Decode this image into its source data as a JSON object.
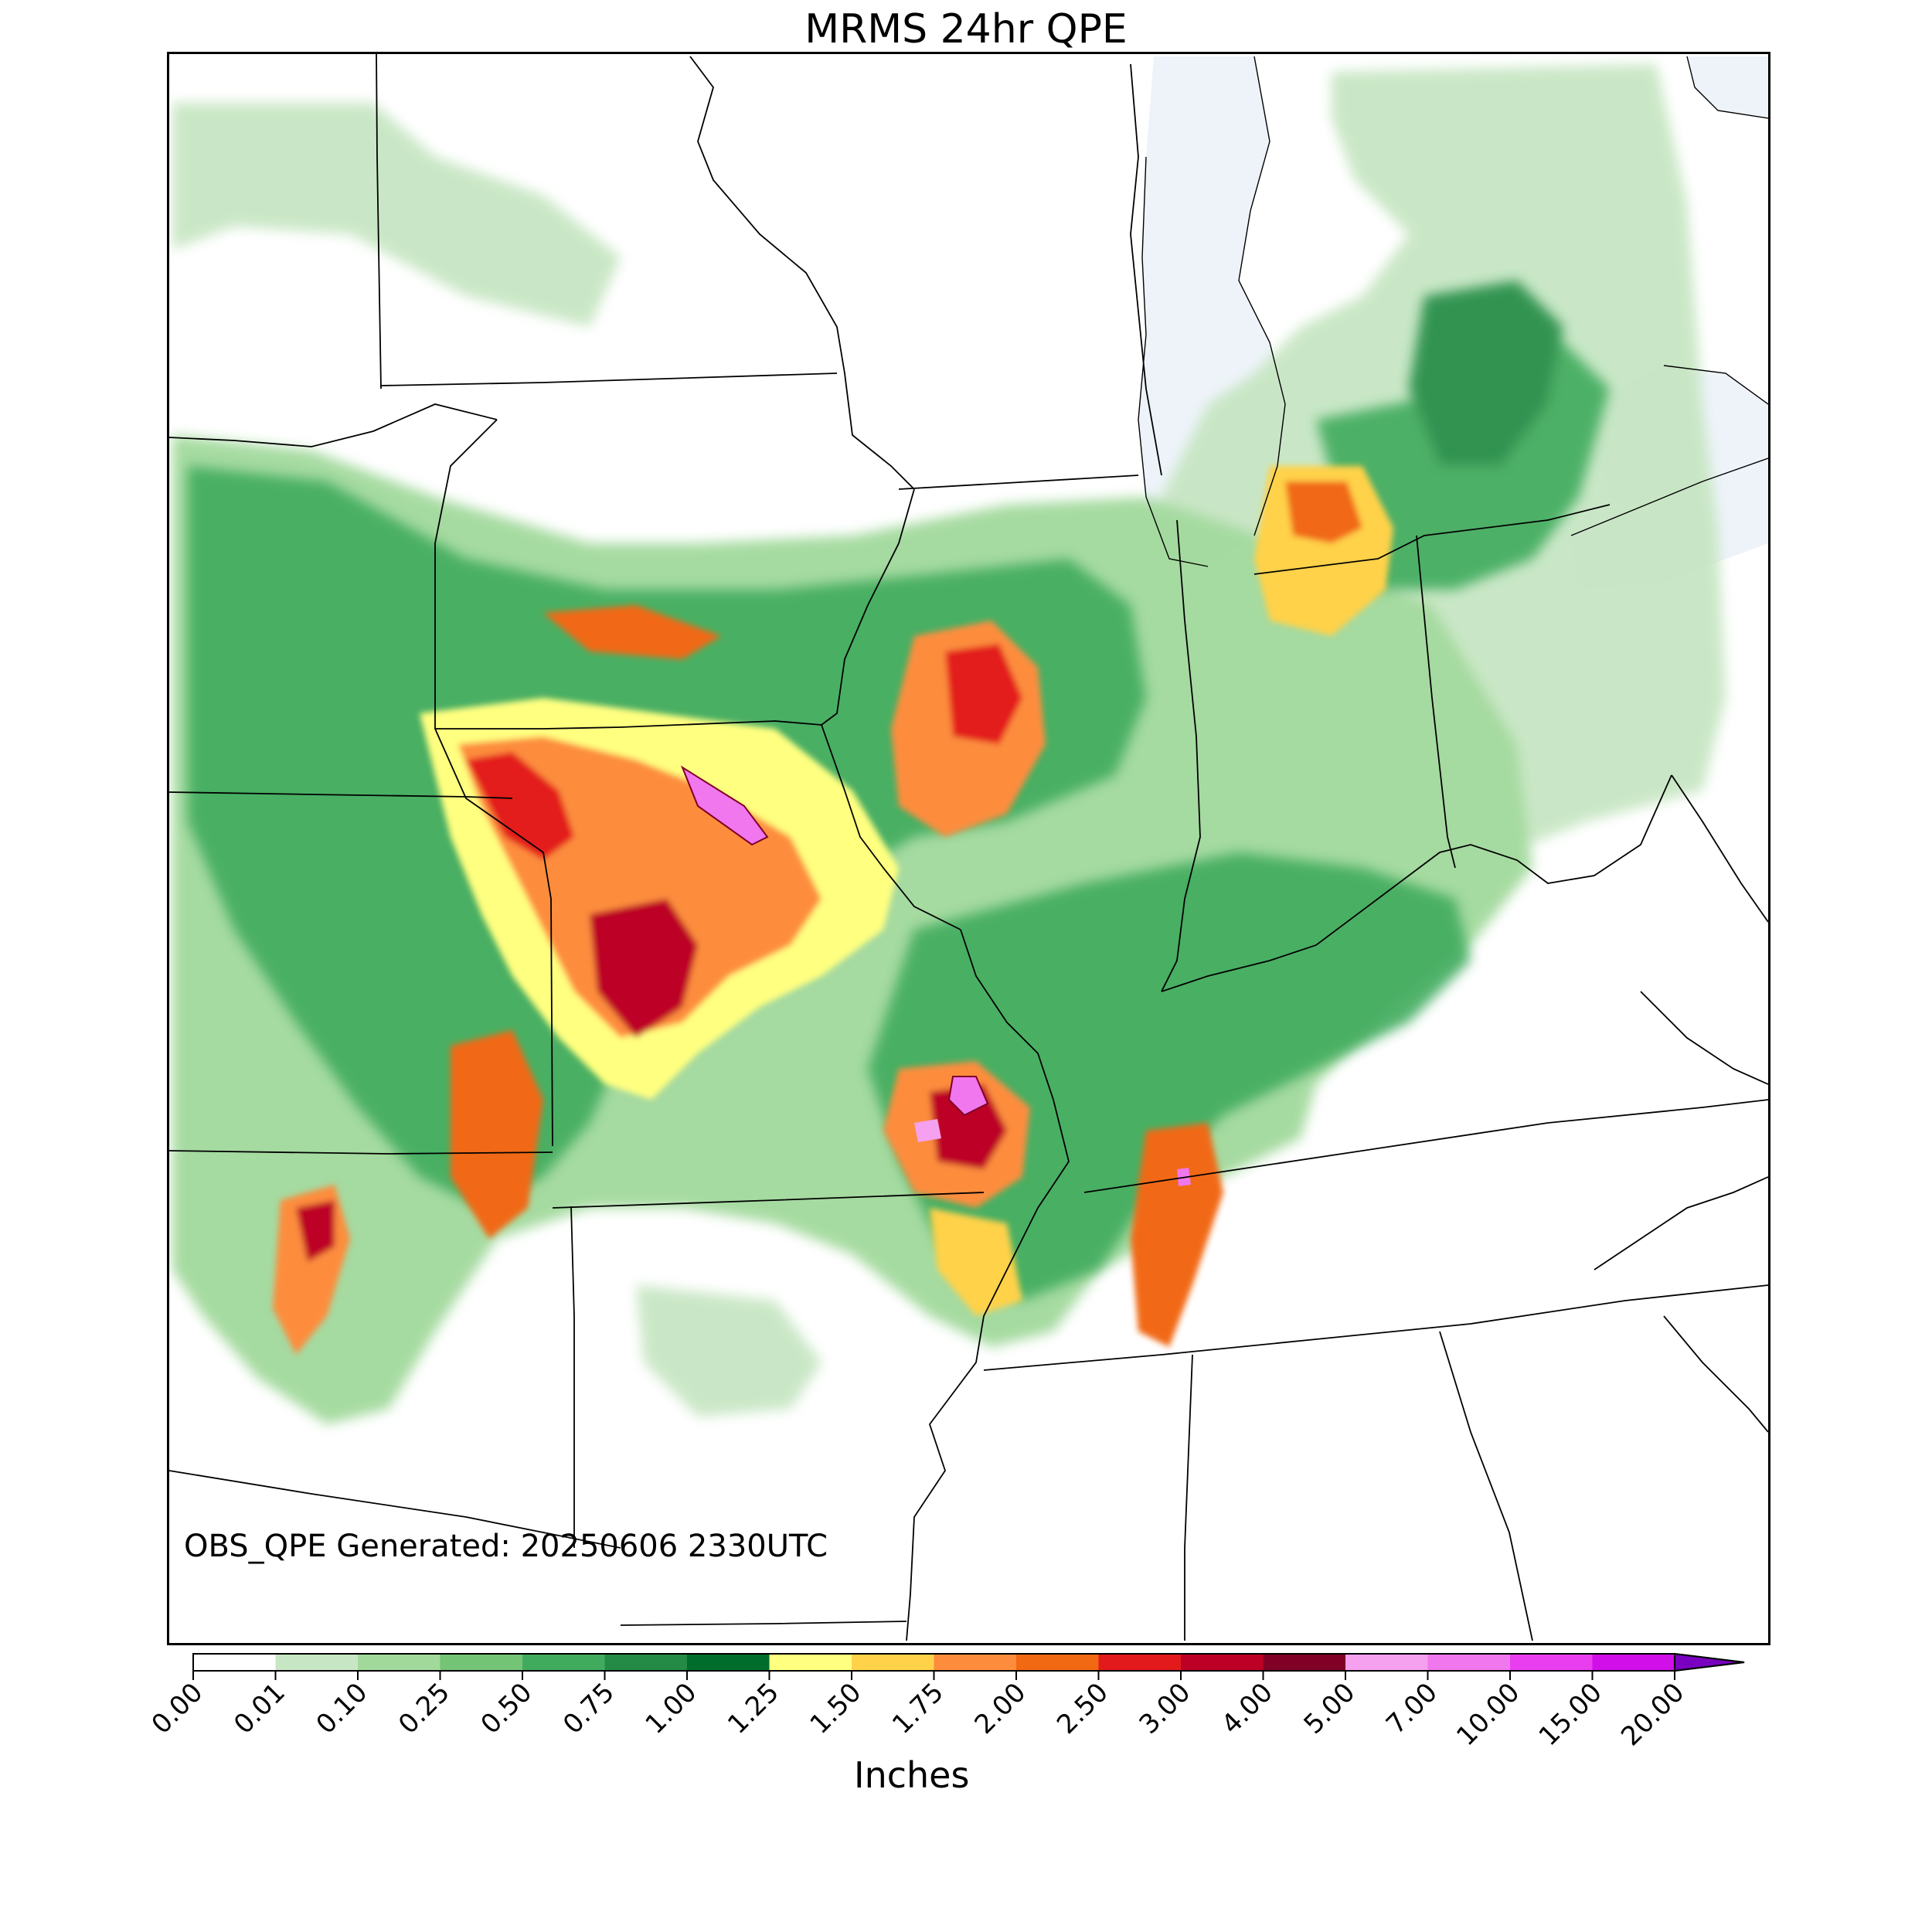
{
  "title": "MRMS 24hr QPE",
  "annotation": "OBS_QPE Generated: 20250606 2330UTC",
  "colorbar": {
    "label": "Inches",
    "ticks": [
      "0.00",
      "0.01",
      "0.10",
      "0.25",
      "0.50",
      "0.75",
      "1.00",
      "1.25",
      "1.50",
      "1.75",
      "2.00",
      "2.50",
      "3.00",
      "4.00",
      "5.00",
      "7.00",
      "10.00",
      "15.00",
      "20.00"
    ],
    "colors": [
      "#ffffff",
      "#c7e6c3",
      "#a1d99b",
      "#74c476",
      "#41ab5d",
      "#238b45",
      "#006d2c",
      "#ffff80",
      "#ffd24a",
      "#fd8d3c",
      "#f16913",
      "#e31a1c",
      "#bd0026",
      "#800026",
      "#f6a0f0",
      "#f077ee",
      "#e83ef0",
      "#d10fe8",
      "#9a00d8"
    ],
    "extend_color": "#7a00c0"
  },
  "colors": {
    "lake": "#eef3fa",
    "border": "#000000"
  }
}
